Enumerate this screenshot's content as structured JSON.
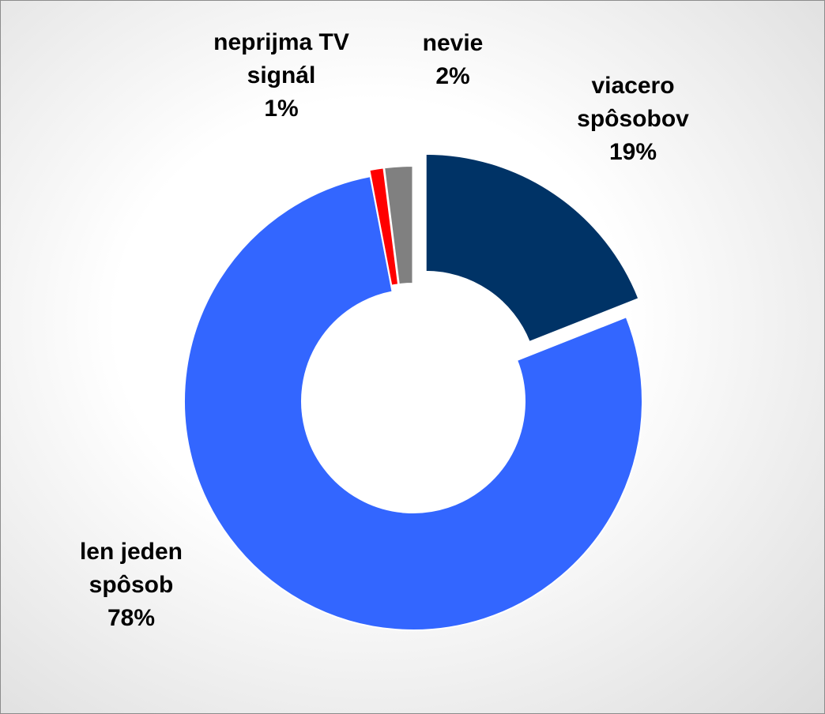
{
  "chart_data": {
    "type": "donut",
    "categories": [
      "viacero spôsobov",
      "len jeden spôsob",
      "neprijma TV signál",
      "nevie"
    ],
    "values": [
      19,
      78,
      1,
      2
    ],
    "value_labels": [
      "19%",
      "78%",
      "1%",
      "2%"
    ],
    "colors": [
      "#003366",
      "#3366ff",
      "#ff0000",
      "#808080"
    ]
  }
}
